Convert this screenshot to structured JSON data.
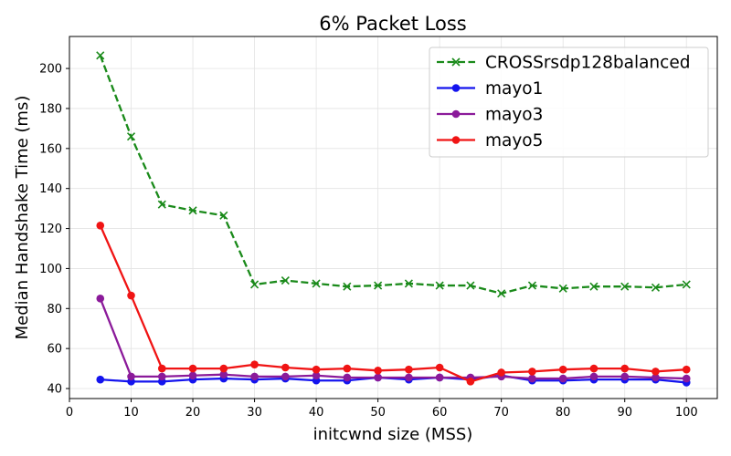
{
  "chart_data": {
    "type": "line",
    "title": "6% Packet Loss",
    "xlabel": "initcwnd size (MSS)",
    "ylabel": "Median Handshake Time (ms)",
    "xlim": [
      0,
      105
    ],
    "ylim": [
      35,
      216
    ],
    "xticks": [
      0,
      10,
      20,
      30,
      40,
      50,
      60,
      70,
      80,
      90,
      100
    ],
    "yticks": [
      40,
      60,
      80,
      100,
      120,
      140,
      160,
      180,
      200
    ],
    "grid": true,
    "legend_position": "top-right",
    "x": [
      5,
      10,
      15,
      20,
      25,
      30,
      35,
      40,
      45,
      50,
      55,
      60,
      65,
      70,
      75,
      80,
      85,
      90,
      95,
      100
    ],
    "series": [
      {
        "name": "CROSSrsdp128balanced",
        "color": "#1a8a1a",
        "linestyle": "dashed",
        "marker": "x",
        "values": [
          206.5,
          166,
          132,
          129,
          126.5,
          92,
          94,
          92.5,
          91,
          91.5,
          92.5,
          91.5,
          91.5,
          87.5,
          91.5,
          90,
          91,
          91,
          90.5,
          92
        ]
      },
      {
        "name": "mayo1",
        "color": "#1414ee",
        "linestyle": "solid",
        "marker": "o",
        "values": [
          44.5,
          43.5,
          43.5,
          44.5,
          45,
          44.5,
          45,
          44,
          44,
          45.5,
          44.5,
          45.5,
          44.5,
          46.5,
          44,
          44,
          44.5,
          44.5,
          44.5,
          43
        ]
      },
      {
        "name": "mayo3",
        "color": "#8b1a9a",
        "linestyle": "solid",
        "marker": "o",
        "values": [
          85,
          46,
          46,
          46.5,
          47,
          46,
          46,
          46.5,
          45.5,
          45.5,
          45.5,
          45.5,
          45.5,
          46,
          45,
          45,
          46,
          46,
          45.5,
          45
        ]
      },
      {
        "name": "mayo5",
        "color": "#f01414",
        "linestyle": "solid",
        "marker": "o",
        "values": [
          121.5,
          86.5,
          50,
          50,
          50,
          52,
          50.5,
          49.5,
          50,
          49,
          49.5,
          50.5,
          43.5,
          48,
          48.5,
          49.5,
          50,
          50,
          48.5,
          49.5
        ]
      }
    ]
  }
}
